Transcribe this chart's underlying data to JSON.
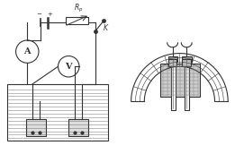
{
  "bg_color": "#f0f0f0",
  "line_color": "#555555",
  "dark": "#333333",
  "light_gray": "#cccccc",
  "mid_gray": "#999999",
  "hatch_gray": "#bbbbbb"
}
